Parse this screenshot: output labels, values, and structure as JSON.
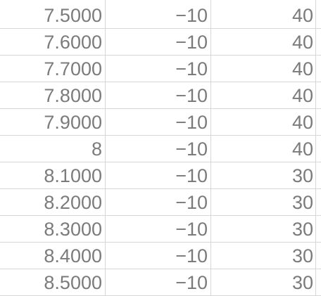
{
  "grid": {
    "rows": [
      {
        "a": "7.5000",
        "b": "−10",
        "c": "40"
      },
      {
        "a": "7.6000",
        "b": "−10",
        "c": "40"
      },
      {
        "a": "7.7000",
        "b": "−10",
        "c": "40"
      },
      {
        "a": "7.8000",
        "b": "−10",
        "c": "40"
      },
      {
        "a": "7.9000",
        "b": "−10",
        "c": "40"
      },
      {
        "a": "8",
        "b": "−10",
        "c": "40"
      },
      {
        "a": "8.1000",
        "b": "−10",
        "c": "30"
      },
      {
        "a": "8.2000",
        "b": "−10",
        "c": "30"
      },
      {
        "a": "8.3000",
        "b": "−10",
        "c": "30"
      },
      {
        "a": "8.4000",
        "b": "−10",
        "c": "30"
      },
      {
        "a": "8.5000",
        "b": "−10",
        "c": "30"
      }
    ]
  }
}
